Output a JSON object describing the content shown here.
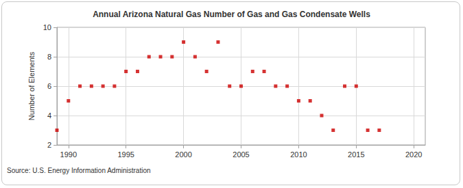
{
  "chart_data": {
    "type": "scatter",
    "title": "Annual Arizona Natural Gas Number of Gas and Gas Condensate Wells",
    "y_label": "Number of Elements",
    "source": "Source: U.S. Energy Information Administration",
    "x": [
      1989,
      1990,
      1991,
      1992,
      1993,
      1994,
      1995,
      1996,
      1997,
      1998,
      1999,
      2000,
      2001,
      2002,
      2003,
      2004,
      2005,
      2006,
      2007,
      2008,
      2009,
      2010,
      2011,
      2012,
      2013,
      2014,
      2015,
      2016,
      2017
    ],
    "values": [
      3,
      5,
      6,
      6,
      6,
      6,
      7,
      7,
      8,
      8,
      8,
      9,
      8,
      7,
      9,
      6,
      6,
      7,
      7,
      6,
      6,
      5,
      5,
      4,
      3,
      6,
      6,
      3,
      3
    ],
    "color": "#cc0000",
    "marker": "square",
    "xlim": [
      1989,
      2021
    ],
    "xticks": [
      1990,
      1995,
      2000,
      2005,
      2010,
      2015,
      2020
    ],
    "ylim": [
      2,
      10
    ],
    "yticks": [
      2,
      4,
      6,
      8,
      10
    ],
    "grid": true
  }
}
